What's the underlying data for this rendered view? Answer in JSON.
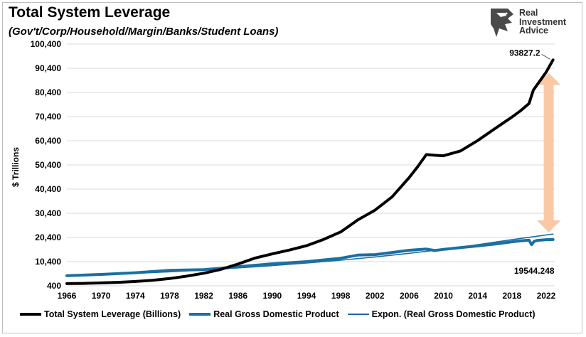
{
  "chart_data": {
    "type": "line",
    "title": "Total System Leverage",
    "subtitle": "(Gov't/Corp/Household/Margin/Banks/Student Loans)",
    "ylabel": "$ Trillions",
    "xlabel": "",
    "xlim": [
      1966,
      2023
    ],
    "ylim": [
      400,
      100400
    ],
    "y_ticks": [
      "400",
      "10,400",
      "20,400",
      "30,400",
      "40,400",
      "50,400",
      "60,400",
      "70,400",
      "80,400",
      "90,400",
      "100,400"
    ],
    "y_tick_values": [
      400,
      10400,
      20400,
      30400,
      40400,
      50400,
      60400,
      70400,
      80400,
      90400,
      100400
    ],
    "x_ticks": [
      "1966",
      "1970",
      "1974",
      "1978",
      "1982",
      "1986",
      "1990",
      "1994",
      "1998",
      "2002",
      "2006",
      "2010",
      "2014",
      "2018",
      "2022"
    ],
    "x_tick_values": [
      1966,
      1970,
      1974,
      1978,
      1982,
      1986,
      1990,
      1994,
      1998,
      2002,
      2006,
      2010,
      2014,
      2018,
      2022
    ],
    "grid": "horizontal",
    "legend_position": "bottom",
    "series": [
      {
        "name": "Total System Leverage (Billions)",
        "color": "#000000",
        "style": "thick",
        "x": [
          1966,
          1968,
          1970,
          1972,
          1974,
          1976,
          1978,
          1980,
          1982,
          1984,
          1986,
          1988,
          1990,
          1992,
          1994,
          1996,
          1998,
          2000,
          2002,
          2004,
          2006,
          2007,
          2008,
          2009,
          2010,
          2011,
          2012,
          2014,
          2016,
          2018,
          2019,
          2020,
          2020.5,
          2021,
          2022,
          2022.8
        ],
        "values": [
          1300,
          1400,
          1600,
          1850,
          2200,
          2700,
          3400,
          4400,
          5600,
          7200,
          9400,
          11900,
          13600,
          15200,
          17000,
          19600,
          22700,
          27700,
          31700,
          37200,
          45200,
          49700,
          54700,
          54400,
          54200,
          55200,
          56200,
          60500,
          65400,
          70200,
          72800,
          75800,
          81300,
          83800,
          88800,
          93827.2
        ]
      },
      {
        "name": "Real Gross Domestic Product",
        "color": "#1a6fa3",
        "style": "thick",
        "x": [
          1966,
          1970,
          1974,
          1978,
          1982,
          1984,
          1986,
          1990,
          1994,
          1998,
          2000,
          2002,
          2004,
          2006,
          2008,
          2009,
          2010,
          2012,
          2014,
          2016,
          2018,
          2019,
          2020,
          2020.3,
          2020.6,
          2021,
          2022,
          2022.8
        ],
        "values": [
          4600,
          5100,
          5800,
          6800,
          7100,
          7700,
          8300,
          9500,
          10400,
          11800,
          13100,
          13300,
          14200,
          15100,
          15600,
          15000,
          15500,
          16200,
          16900,
          17700,
          18600,
          19000,
          19300,
          17400,
          18800,
          19200,
          19500,
          19544.248
        ]
      },
      {
        "name": "Expon. (Real Gross Domestic Product)",
        "color": "#1a6fa3",
        "style": "thin",
        "x": [
          1966,
          1970,
          1974,
          1978,
          1982,
          1986,
          1990,
          1994,
          1998,
          2002,
          2006,
          2010,
          2014,
          2018,
          2022.8
        ],
        "values": [
          4400,
          4950,
          5550,
          6200,
          6950,
          7800,
          8750,
          9800,
          11000,
          12350,
          13850,
          15500,
          17400,
          19500,
          21800
        ]
      }
    ],
    "annotations": [
      {
        "text": "93827.2",
        "x": 2022.8,
        "y": 93827.2
      },
      {
        "text": "19544.248",
        "x": 2022.8,
        "y": 19544.248
      }
    ],
    "double_arrow": {
      "color": "#f9c9a6",
      "x": 2022.8,
      "y_from": 22500,
      "y_to": 88500
    }
  },
  "logo": {
    "line1": "Real",
    "line2": "Investment",
    "line3": "Advice"
  }
}
